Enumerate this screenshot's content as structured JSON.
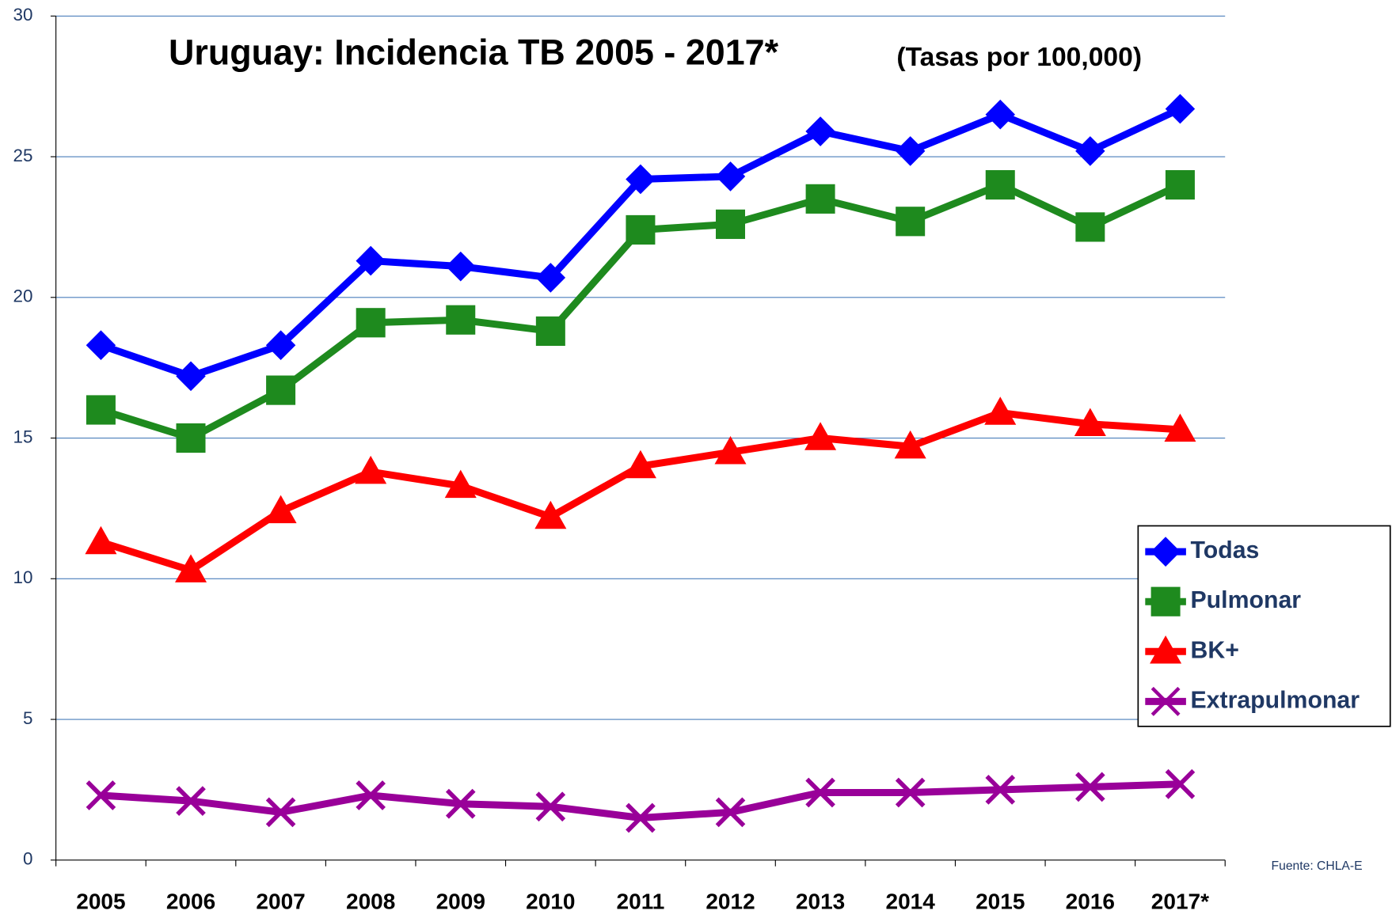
{
  "chart_data": {
    "type": "line",
    "title": "Uruguay: Incidencia TB 2005 - 2017*",
    "subtitle": "(Tasas por 100,000)",
    "source": "Fuente: CHLA-E",
    "categories": [
      "2005",
      "2006",
      "2007",
      "2008",
      "2009",
      "2010",
      "2011",
      "2012",
      "2013",
      "2014",
      "2015",
      "2016",
      "2017*"
    ],
    "series": [
      {
        "name": "Todas",
        "color": "#0000ff",
        "marker": "diamond",
        "values": [
          18.3,
          17.2,
          18.3,
          21.3,
          21.1,
          20.7,
          24.2,
          24.3,
          25.9,
          25.2,
          26.5,
          25.2,
          26.7
        ]
      },
      {
        "name": "Pulmonar",
        "color": "#1e8a1e",
        "marker": "square",
        "values": [
          16.0,
          15.0,
          16.7,
          19.1,
          19.2,
          18.8,
          22.4,
          22.6,
          23.5,
          22.7,
          24.0,
          22.5,
          24.0
        ]
      },
      {
        "name": "BK+",
        "color": "#ff0000",
        "marker": "triangle",
        "values": [
          11.3,
          10.3,
          12.4,
          13.8,
          13.3,
          12.2,
          14.0,
          14.5,
          15.0,
          14.7,
          15.9,
          15.5,
          15.3
        ]
      },
      {
        "name": "Extrapulmonar",
        "color": "#990099",
        "marker": "x",
        "values": [
          2.3,
          2.1,
          1.7,
          2.3,
          2.0,
          1.9,
          1.5,
          1.7,
          2.4,
          2.4,
          2.5,
          2.6,
          2.7
        ]
      }
    ],
    "ylim": [
      0,
      30
    ],
    "yticks": [
      0,
      5,
      10,
      15,
      20,
      25,
      30
    ],
    "grid": true,
    "legend": "right"
  }
}
